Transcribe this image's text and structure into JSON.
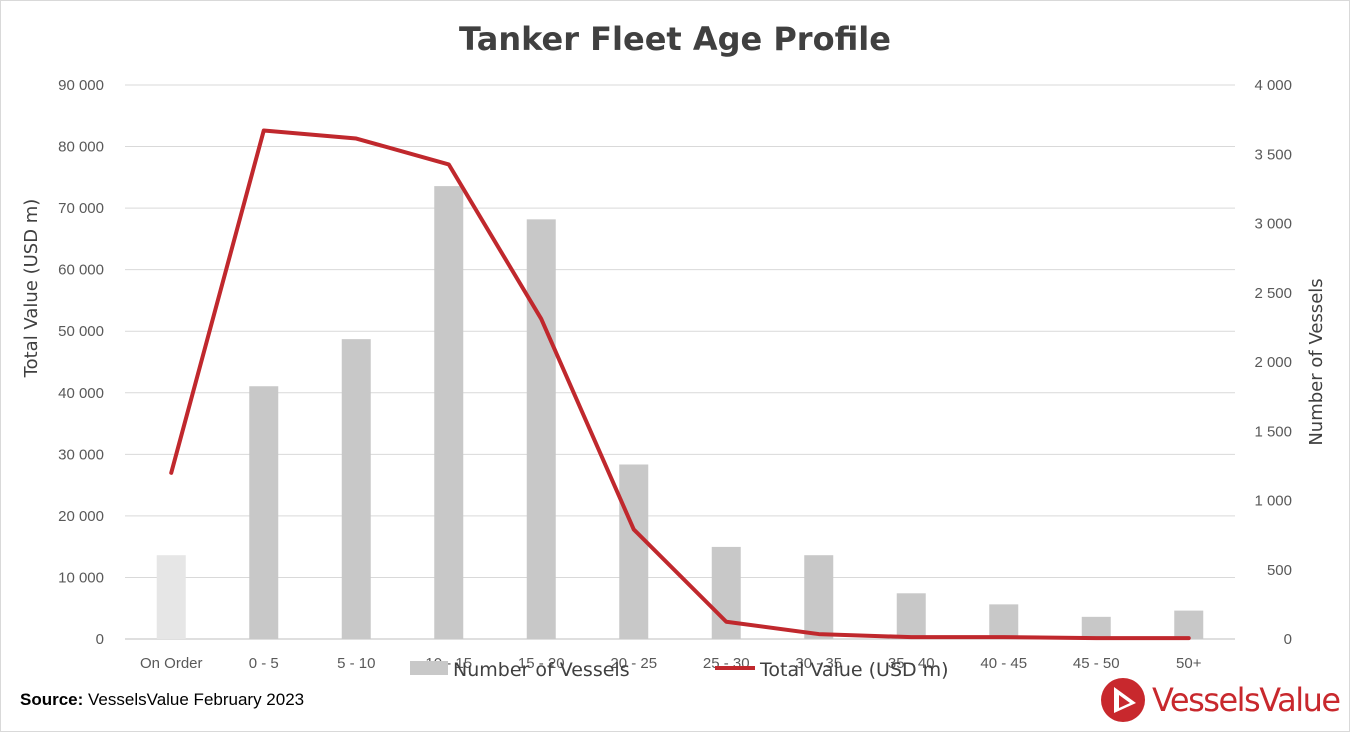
{
  "chart_data": {
    "type": "bar",
    "title": "Tanker Fleet Age Profile",
    "categories": [
      "On Order",
      "0 - 5",
      "5 - 10",
      "10 - 15",
      "15 - 20",
      "20 - 25",
      "25 - 30",
      "30 - 35",
      "35 - 40",
      "40 - 45",
      "45 - 50",
      "50+"
    ],
    "series": [
      {
        "name": "Number of Vessels",
        "type": "bar",
        "axis": "right",
        "color": "#c8c8c8",
        "highlight_color": "#e6e6e6",
        "values": [
          605,
          1825,
          2165,
          3270,
          3030,
          1260,
          665,
          605,
          330,
          250,
          160,
          205
        ]
      },
      {
        "name": "Total Value (USD m)",
        "type": "line",
        "axis": "left",
        "color": "#c0282d",
        "values": [
          27000,
          82600,
          81300,
          77100,
          52000,
          17800,
          2800,
          800,
          300,
          300,
          150,
          150
        ]
      }
    ],
    "ylabel": "Total Value (USD m)",
    "y2label": "Number of Vessels",
    "ylim": [
      0,
      90000
    ],
    "y2lim": [
      0,
      4000
    ],
    "yticks": [
      "0",
      "10 000",
      "20 000",
      "30 000",
      "40 000",
      "50 000",
      "60 000",
      "70 000",
      "80 000",
      "90 000"
    ],
    "y2ticks": [
      "0",
      "500",
      "1 000",
      "1 500",
      "2 000",
      "2 500",
      "3 000",
      "3 500",
      "4 000"
    ],
    "grid": true,
    "legend": "bottom"
  },
  "source": {
    "label": "Source:",
    "text": "VesselsValue February 2023"
  },
  "logo": {
    "text": "VesselsValue",
    "color": "#c8282d"
  }
}
